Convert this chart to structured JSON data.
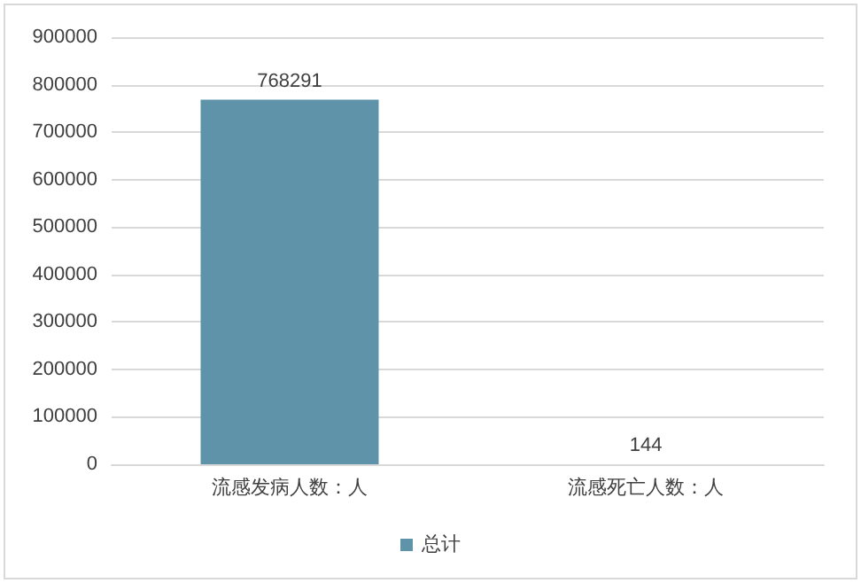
{
  "chart_data": {
    "type": "bar",
    "categories": [
      "流感发病人数：人",
      "流感死亡人数：人"
    ],
    "series": [
      {
        "name": "总计",
        "color": "#5f93a9",
        "values": [
          768291,
          144
        ]
      }
    ],
    "ylim": [
      0,
      900000
    ],
    "yticks": [
      0,
      100000,
      200000,
      300000,
      400000,
      500000,
      600000,
      700000,
      800000,
      900000
    ],
    "grid": "y",
    "legend": "bottom",
    "data_labels": true
  }
}
